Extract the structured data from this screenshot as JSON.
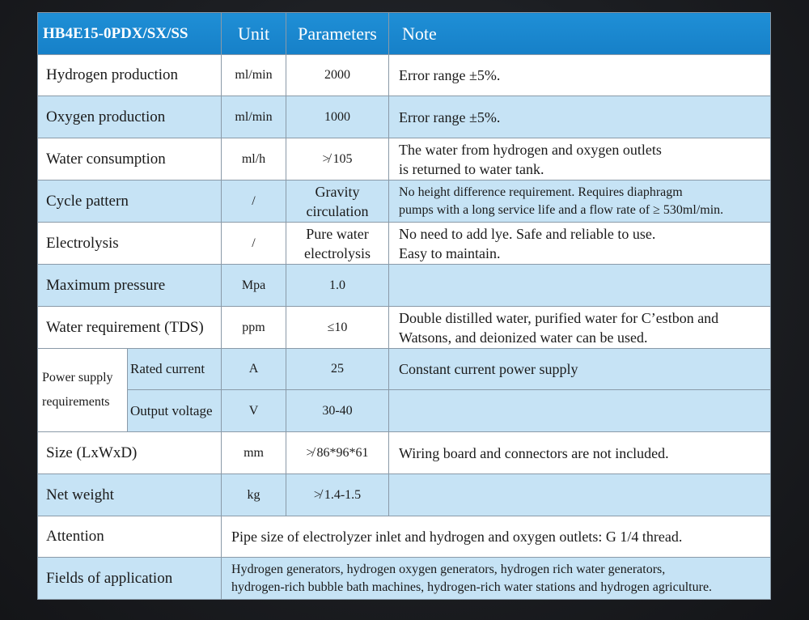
{
  "header": {
    "model": "HB4E15-0PDX/SX/SS",
    "unit": "Unit",
    "parameters": "Parameters",
    "note": "Note"
  },
  "rows": {
    "hydrogen": {
      "name": "Hydrogen production",
      "unit": "ml/min",
      "param": "2000",
      "note": "Error range ±5%."
    },
    "oxygen": {
      "name": "Oxygen production",
      "unit": "ml/min",
      "param": "1000",
      "note": "Error range ±5%."
    },
    "water": {
      "name": "Water consumption",
      "unit": "ml/h",
      "param": "≯ 105",
      "note1": "The water from hydrogen and oxygen outlets",
      "note2": "is returned to water tank."
    },
    "cycle": {
      "name": "Cycle pattern",
      "unit": "/",
      "param1": "Gravity",
      "param2": "circulation",
      "note1": "No height difference requirement. Requires diaphragm",
      "note2": "pumps with a long service life and a flow rate of ≥ 530ml/min."
    },
    "electrolysis": {
      "name": "Electrolysis",
      "unit": "/",
      "param1": "Pure water",
      "param2": "electrolysis",
      "note1": "No need to add lye. Safe and reliable to use.",
      "note2": "Easy to maintain."
    },
    "pressure": {
      "name": "Maximum pressure",
      "unit": "Mpa",
      "param": "1.0",
      "note": ""
    },
    "tds": {
      "name": "Water requirement (TDS)",
      "unit": "ppm",
      "param": "≤10",
      "note1": "Double distilled water, purified water for C’estbon and",
      "note2": "Watsons, and deionized water can be used."
    },
    "power": {
      "group1": "Power supply",
      "group2": "requirements",
      "current": {
        "name": "Rated current",
        "unit": "A",
        "param": "25",
        "note": "Constant current power supply"
      },
      "voltage": {
        "name": "Output voltage",
        "unit": "V",
        "param": "30-40",
        "note": ""
      }
    },
    "size": {
      "name": "Size (LxWxD)",
      "unit": "mm",
      "param": "≯ 86*96*61",
      "note": "Wiring board and connectors are not included."
    },
    "weight": {
      "name": "Net weight",
      "unit": "kg",
      "param": "≯ 1.4-1.5",
      "note": ""
    },
    "attention": {
      "name": "Attention",
      "text": "Pipe size of electrolyzer inlet and hydrogen and oxygen outlets: G 1/4 thread."
    },
    "fields": {
      "name": "Fields of application",
      "text1": "Hydrogen generators, hydrogen oxygen generators, hydrogen rich water generators,",
      "text2": "hydrogen-rich bubble bath machines, hydrogen-rich water stations and hydrogen agriculture."
    }
  }
}
